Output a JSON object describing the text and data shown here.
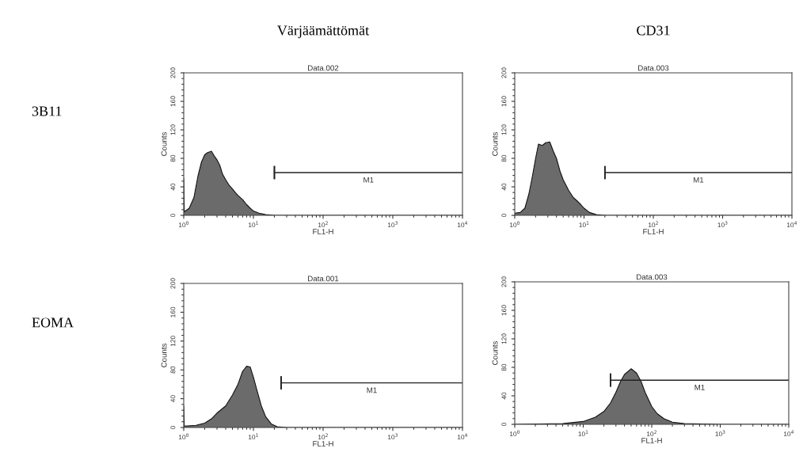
{
  "chart_data": [
    {
      "type": "area",
      "title": "Data.002",
      "subtitle": "Värjäämättömät",
      "annotations": [
        "3B11"
      ],
      "xlabel": "FL1-H",
      "ylabel": "Counts",
      "log": "x",
      "xlim": [
        1,
        10000
      ],
      "ylim": [
        0,
        200
      ],
      "xticks": [
        {
          "value": 1,
          "label": "10$^{0}$"
        },
        {
          "value": 10,
          "label": "10$^{1}$"
        },
        {
          "value": 100,
          "label": "10$^{2}$"
        },
        {
          "value": 1000,
          "label": "10$^{3}$"
        },
        {
          "value": 10000,
          "label": "10$^{4}$"
        }
      ],
      "yticks": [
        0,
        40,
        80,
        120,
        160,
        200
      ],
      "series": [
        {
          "color": "#6b6b6b",
          "x": [
            1,
            1.02,
            1.2,
            1.4,
            1.6,
            1.8,
            2,
            2.2,
            2.5,
            2.8,
            3,
            3.3,
            3.6,
            4,
            4.5,
            5,
            5.5,
            6,
            7,
            8,
            9,
            10,
            12,
            15,
            20,
            10000
          ],
          "values": [
            52,
            5,
            10,
            25,
            55,
            75,
            85,
            88,
            90,
            82,
            78,
            70,
            58,
            50,
            42,
            37,
            32,
            28,
            22,
            15,
            10,
            6,
            3,
            1,
            0,
            0
          ]
        },
        {
          "type": "line",
          "name": "M1",
          "color": "#222222",
          "x": [
            20,
            10000
          ],
          "values": [
            60,
            60
          ]
        }
      ]
    },
    {
      "type": "area",
      "title": "Data.003",
      "subtitle": "CD31",
      "xlabel": "FL1-H",
      "ylabel": "Counts",
      "log": "x",
      "xlim": [
        1,
        10000
      ],
      "ylim": [
        0,
        200
      ],
      "xticks": [
        {
          "value": 1,
          "label": "10$^{0}$"
        },
        {
          "value": 10,
          "label": "10$^{1}$"
        },
        {
          "value": 100,
          "label": "10$^{2}$"
        },
        {
          "value": 1000,
          "label": "10$^{3}$"
        },
        {
          "value": 10000,
          "label": "10$^{4}$"
        }
      ],
      "yticks": [
        0,
        40,
        80,
        120,
        160,
        200
      ],
      "series": [
        {
          "color": "#6b6b6b",
          "x": [
            1,
            1.2,
            1.4,
            1.6,
            1.8,
            2,
            2.2,
            2.5,
            2.8,
            3.2,
            3.6,
            4,
            4.5,
            5,
            6,
            7,
            8,
            9,
            10,
            12,
            15,
            20,
            10000
          ],
          "values": [
            3,
            4,
            10,
            30,
            55,
            80,
            100,
            98,
            102,
            103,
            90,
            80,
            62,
            50,
            35,
            25,
            20,
            15,
            10,
            4,
            1,
            0,
            0
          ]
        },
        {
          "type": "line",
          "name": "M1",
          "color": "#222222",
          "x": [
            20,
            10000
          ],
          "values": [
            60,
            60
          ]
        }
      ]
    },
    {
      "type": "area",
      "title": "Data.001",
      "annotations": [
        "EOMA"
      ],
      "xlabel": "FL1-H",
      "ylabel": "Counts",
      "log": "x",
      "xlim": [
        1,
        10000
      ],
      "ylim": [
        0,
        200
      ],
      "xticks": [
        {
          "value": 1,
          "label": "10$^{0}$"
        },
        {
          "value": 10,
          "label": "10$^{1}$"
        },
        {
          "value": 100,
          "label": "10$^{2}$"
        },
        {
          "value": 1000,
          "label": "10$^{3}$"
        },
        {
          "value": 10000,
          "label": "10$^{4}$"
        }
      ],
      "yticks": [
        0,
        40,
        80,
        120,
        160,
        200
      ],
      "series": [
        {
          "color": "#6b6b6b",
          "x": [
            1,
            1.02,
            1.5,
            2,
            2.5,
            3,
            4,
            5,
            6,
            7,
            8,
            9,
            10,
            11,
            13,
            15,
            18,
            22,
            30,
            10000
          ],
          "values": [
            30,
            2,
            3,
            6,
            12,
            20,
            30,
            45,
            60,
            78,
            85,
            84,
            70,
            55,
            30,
            15,
            5,
            1,
            0,
            0
          ]
        },
        {
          "type": "line",
          "name": "M1",
          "color": "#222222",
          "x": [
            25,
            10000
          ],
          "values": [
            62,
            62
          ]
        }
      ]
    },
    {
      "type": "area",
      "title": "Data.003",
      "xlabel": "FL1-H",
      "ylabel": "Counts",
      "log": "x",
      "xlim": [
        1,
        10000
      ],
      "ylim": [
        0,
        200
      ],
      "xticks": [
        {
          "value": 1,
          "label": "10$^{0}$"
        },
        {
          "value": 10,
          "label": "10$^{1}$"
        },
        {
          "value": 100,
          "label": "10$^{2}$"
        },
        {
          "value": 1000,
          "label": "10$^{3}$"
        },
        {
          "value": 10000,
          "label": "10$^{4}$"
        }
      ],
      "yticks": [
        0,
        40,
        80,
        120,
        160,
        200
      ],
      "series": [
        {
          "color": "#6b6b6b",
          "x": [
            1,
            5,
            10,
            15,
            20,
            25,
            30,
            35,
            40,
            50,
            60,
            70,
            80,
            100,
            120,
            150,
            200,
            300,
            1000,
            10000
          ],
          "values": [
            0,
            1,
            4,
            10,
            18,
            30,
            45,
            60,
            70,
            78,
            72,
            60,
            45,
            25,
            15,
            8,
            3,
            1,
            0,
            0
          ]
        },
        {
          "type": "line",
          "name": "M1",
          "color": "#222222",
          "x": [
            25,
            10000
          ],
          "values": [
            62,
            62
          ]
        }
      ]
    }
  ]
}
